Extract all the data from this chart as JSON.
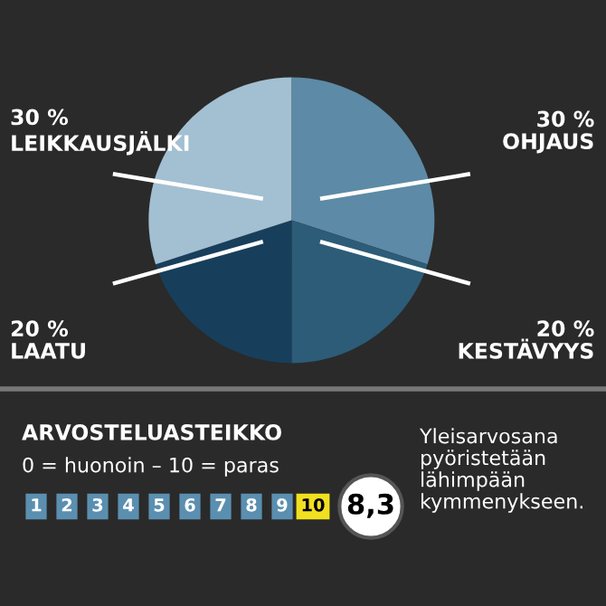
{
  "chart_data": {
    "type": "pie",
    "categories": [
      "OHJAUS",
      "KESTÄVYYS",
      "LAATU",
      "LEIKKAUSJÄLKI"
    ],
    "values": [
      30,
      20,
      20,
      30
    ],
    "value_labels": [
      "30 %",
      "20 %",
      "20 %",
      "30 %"
    ],
    "colors": [
      "#5d8aa6",
      "#2c5c78",
      "#173f5c",
      "#a3bfd2"
    ],
    "annotations": [
      "ARVOSTELUASTEIKKO",
      "0 = huonoin – 10 = paras",
      "1",
      "2",
      "3",
      "4",
      "5",
      "6",
      "7",
      "8",
      "9",
      "10",
      "8,3",
      "Yleisarvosana\npyöristetään\nlähimpään\nkymmenykseen."
    ]
  }
}
